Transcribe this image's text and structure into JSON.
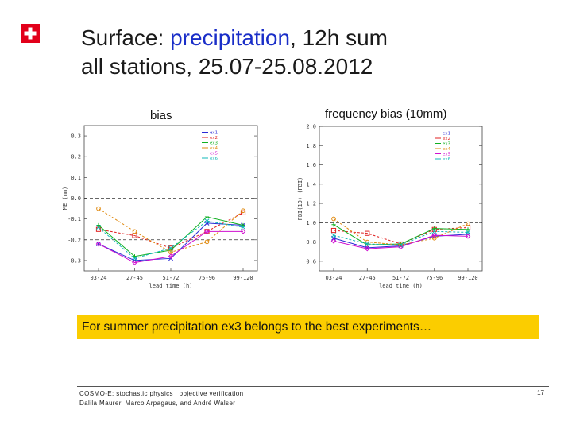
{
  "header": {
    "title_prefix": "Surface: ",
    "title_highlight": "precipitation",
    "title_line1_suffix": ", 12h sum",
    "title_line2": "all stations, 25.07-25.08.2012"
  },
  "logo": {
    "icon": "swiss-cross-icon",
    "color": "#e2001a"
  },
  "charts": {
    "bias_label": "bias",
    "freq_label": "frequency bias (10mm)"
  },
  "chart_data": [
    {
      "type": "line",
      "title": "bias",
      "xlabel": "lead time (h)",
      "ylabel": "ME (mm)",
      "ylim": [
        -0.35,
        0.35
      ],
      "yticks": [
        0.3,
        0.2,
        0.1,
        0.0,
        -0.1,
        -0.2,
        -0.3
      ],
      "ytick_labels": [
        "0.3",
        "0.2",
        "0.1",
        "0.0",
        "-0.1",
        "-0.2",
        "-0.3"
      ],
      "reference_lines": [
        0.0,
        -0.2
      ],
      "categories": [
        "03-24",
        "27-45",
        "51-72",
        "75-96",
        "99-120"
      ],
      "series": [
        {
          "name": "ex1",
          "color": "#2a2ad6",
          "values": [
            -0.22,
            -0.3,
            -0.29,
            -0.12,
            -0.13
          ]
        },
        {
          "name": "ex2",
          "color": "#e02020",
          "values": [
            -0.15,
            -0.18,
            -0.24,
            -0.16,
            -0.07
          ]
        },
        {
          "name": "ex3",
          "color": "#10b020",
          "values": [
            -0.13,
            -0.28,
            -0.25,
            -0.09,
            -0.13
          ]
        },
        {
          "name": "ex4",
          "color": "#e08a10",
          "values": [
            -0.05,
            -0.16,
            -0.26,
            -0.21,
            -0.06
          ]
        },
        {
          "name": "ex5",
          "color": "#d010d0",
          "values": [
            -0.22,
            -0.31,
            -0.28,
            -0.16,
            -0.16
          ]
        },
        {
          "name": "ex6",
          "color": "#10b8b8",
          "values": [
            -0.14,
            -0.29,
            -0.24,
            -0.11,
            -0.14
          ]
        }
      ]
    },
    {
      "type": "line",
      "title": "frequency bias (10mm)",
      "xlabel": "lead time (h)",
      "ylabel": "FBI(10) (FBI)",
      "ylim": [
        0.5,
        2.0
      ],
      "yticks": [
        2.0,
        1.8,
        1.6,
        1.4,
        1.2,
        1.0,
        0.8,
        0.6
      ],
      "ytick_labels": [
        "2.0",
        "1.8",
        "1.6",
        "1.4",
        "1.2",
        "1.0",
        "0.8",
        "0.6"
      ],
      "reference_lines": [
        1.0
      ],
      "categories": [
        "03-24",
        "27-45",
        "51-72",
        "75-96",
        "99-120"
      ],
      "series": [
        {
          "name": "ex1",
          "color": "#2a2ad6",
          "values": [
            0.84,
            0.74,
            0.76,
            0.86,
            0.88
          ]
        },
        {
          "name": "ex2",
          "color": "#e02020",
          "values": [
            0.92,
            0.89,
            0.78,
            0.93,
            0.95
          ]
        },
        {
          "name": "ex3",
          "color": "#10b020",
          "values": [
            0.98,
            0.77,
            0.78,
            0.94,
            0.93
          ]
        },
        {
          "name": "ex4",
          "color": "#e08a10",
          "values": [
            1.04,
            0.8,
            0.77,
            0.84,
            0.99
          ]
        },
        {
          "name": "ex5",
          "color": "#d010d0",
          "values": [
            0.81,
            0.73,
            0.75,
            0.87,
            0.86
          ]
        },
        {
          "name": "ex6",
          "color": "#10b8b8",
          "values": [
            0.87,
            0.78,
            0.77,
            0.91,
            0.9
          ]
        }
      ]
    }
  ],
  "note": "For summer precipitation ex3 belongs to the best experiments…",
  "footer": {
    "line1": "COSMO-E: stochastic physics | objective verification",
    "line2": "Dalila Maurer, Marco Arpagaus, and André Walser",
    "page": "17"
  }
}
